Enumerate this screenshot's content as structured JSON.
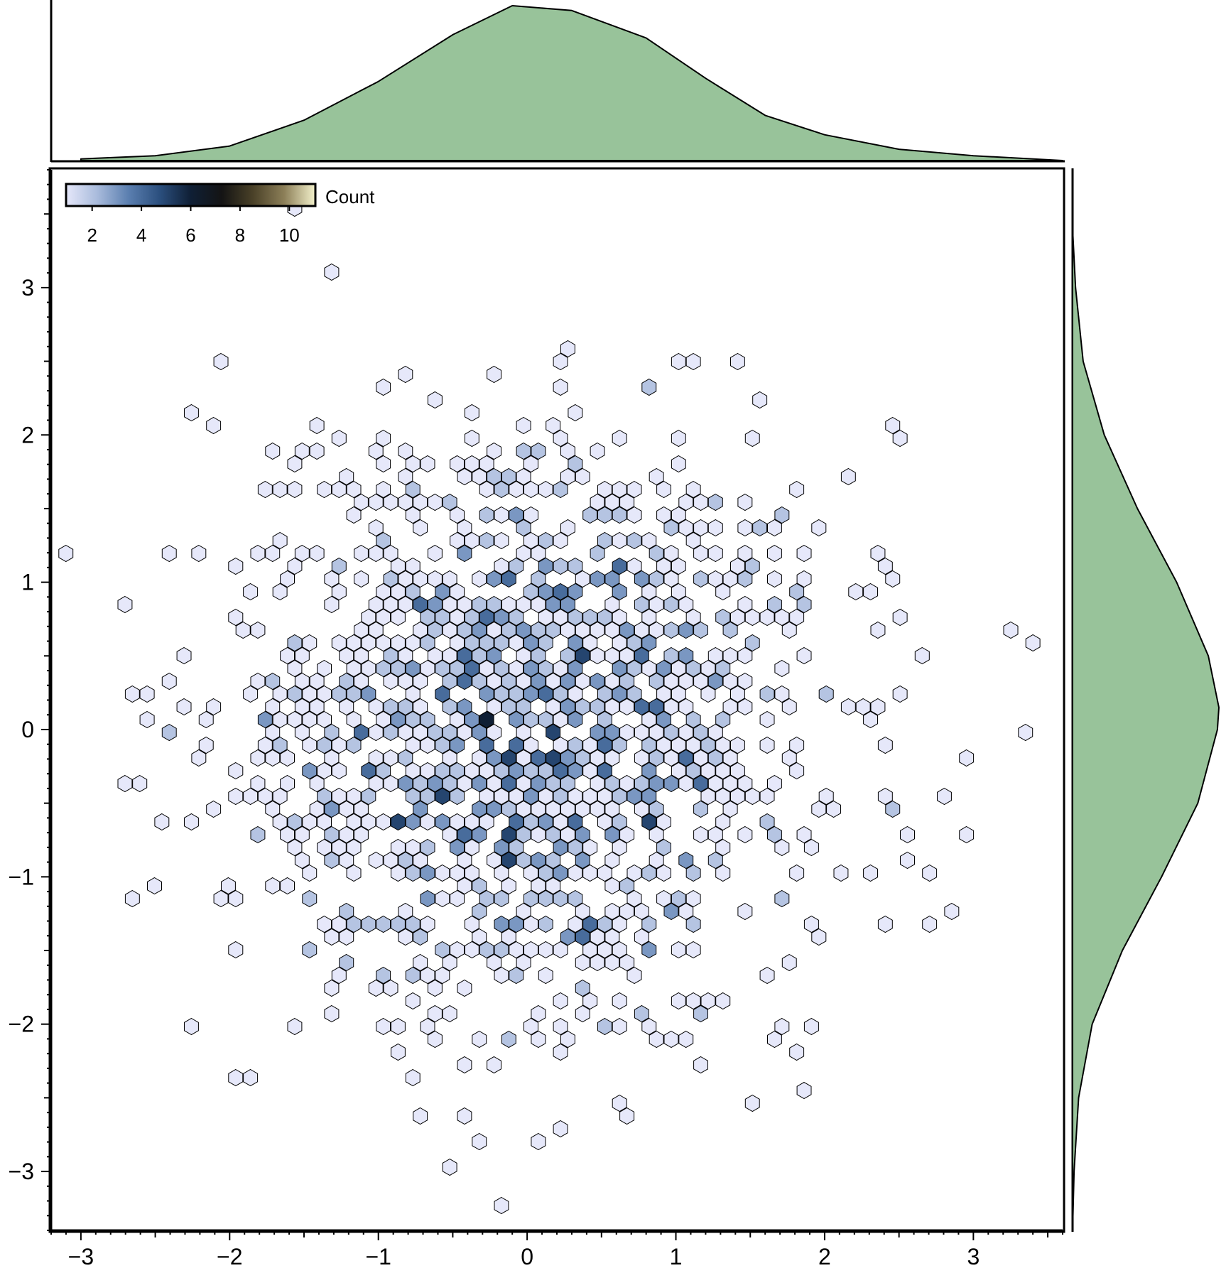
{
  "chart_data": {
    "type": "hexbin",
    "title": "",
    "xlabel": "",
    "ylabel": "",
    "xlim": [
      -3.2,
      3.6
    ],
    "ylim": [
      -3.4,
      3.8
    ],
    "x_ticks": [
      -3,
      -2,
      -1,
      0,
      1,
      2,
      3
    ],
    "x_tick_labels": [
      "−3",
      "−2",
      "−1",
      "0",
      "1",
      "2",
      "3"
    ],
    "y_ticks": [
      -3,
      -2,
      -1,
      0,
      1,
      2,
      3
    ],
    "y_tick_labels": [
      "−3",
      "−2",
      "−1",
      "0",
      "1",
      "2",
      "3"
    ],
    "grid": false,
    "colorbar": {
      "label": "Count",
      "range": [
        1,
        11
      ],
      "ticks": [
        2,
        4,
        6,
        8,
        10
      ],
      "tick_labels": [
        "2",
        "4",
        "6",
        "8",
        "10"
      ],
      "placement": "top-left",
      "colors": [
        "#e6e8fa",
        "#a9bbdc",
        "#5b7fb0",
        "#2b4f7e",
        "#0f1f35",
        "#141414",
        "#4a4128",
        "#8c7f58",
        "#f4f2cc"
      ]
    },
    "hex_outline_color": "#000000",
    "distribution": {
      "x_mean": 0.0,
      "y_mean": 0.0,
      "x_std": 1.0,
      "y_std": 1.0,
      "n_points": 1500
    },
    "marginal_top": {
      "type": "kde",
      "variable": "x",
      "fill": "#98c39a",
      "grid": [
        -3.0,
        -2.5,
        -2.0,
        -1.5,
        -1.0,
        -0.5,
        -0.1,
        0.3,
        0.8,
        1.2,
        1.6,
        2.0,
        2.5,
        3.0,
        3.6
      ],
      "density": [
        0.01,
        0.03,
        0.09,
        0.25,
        0.49,
        0.78,
        0.96,
        0.93,
        0.76,
        0.51,
        0.28,
        0.16,
        0.07,
        0.03,
        0.0
      ]
    },
    "marginal_right": {
      "type": "kde",
      "variable": "y",
      "fill": "#98c39a",
      "grid": [
        -3.4,
        -3.0,
        -2.5,
        -2.0,
        -1.5,
        -1.0,
        -0.5,
        0.0,
        0.15,
        0.5,
        1.0,
        1.5,
        2.0,
        2.5,
        3.0,
        3.4
      ],
      "density": [
        0.0,
        0.01,
        0.04,
        0.13,
        0.33,
        0.59,
        0.83,
        0.96,
        0.97,
        0.9,
        0.69,
        0.43,
        0.21,
        0.07,
        0.02,
        0.0
      ]
    }
  }
}
